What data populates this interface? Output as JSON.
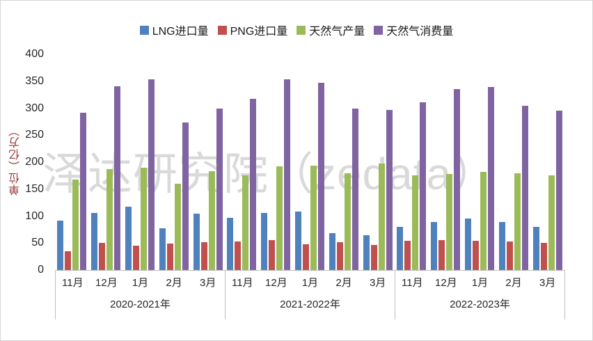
{
  "watermark": "泽达研究院（zedata）",
  "chart_data": {
    "type": "bar",
    "title": "",
    "xlabel": "",
    "ylabel": "单位（亿方）",
    "ylim": [
      0,
      400
    ],
    "yticks": [
      0,
      50,
      100,
      150,
      200,
      250,
      300,
      350,
      400
    ],
    "grid": false,
    "legend_position": "top",
    "series": [
      {
        "name": "LNG进口量",
        "color": "#4F81BD"
      },
      {
        "name": "PNG进口量",
        "color": "#C0504D"
      },
      {
        "name": "天然气产量",
        "color": "#9BBB59"
      },
      {
        "name": "天然气消费量",
        "color": "#8064A2"
      }
    ],
    "groups": [
      {
        "label": "2020-2021年",
        "categories": [
          "11月",
          "12月",
          "1月",
          "2月",
          "3月"
        ],
        "values": [
          [
            92,
            35,
            168,
            291
          ],
          [
            106,
            50,
            187,
            341
          ],
          [
            118,
            45,
            190,
            354
          ],
          [
            78,
            49,
            160,
            273
          ],
          [
            105,
            51,
            183,
            300
          ]
        ]
      },
      {
        "label": "2021-2022年",
        "categories": [
          "11月",
          "12月",
          "1月",
          "2月",
          "3月"
        ],
        "values": [
          [
            97,
            53,
            176,
            318
          ],
          [
            106,
            55,
            192,
            354
          ],
          [
            109,
            48,
            193,
            347
          ],
          [
            68,
            52,
            180,
            300
          ],
          [
            65,
            47,
            197,
            297
          ]
        ]
      },
      {
        "label": "2022-2023年",
        "categories": [
          "11月",
          "12月",
          "1月",
          "2月",
          "3月"
        ],
        "values": [
          [
            80,
            54,
            175,
            311
          ],
          [
            89,
            56,
            178,
            335
          ],
          [
            95,
            54,
            182,
            340
          ],
          [
            89,
            53,
            180,
            305
          ],
          [
            80,
            50,
            176,
            295
          ]
        ]
      }
    ],
    "axis_color": "#bfbfbf",
    "ylabel_color": "#953735"
  }
}
